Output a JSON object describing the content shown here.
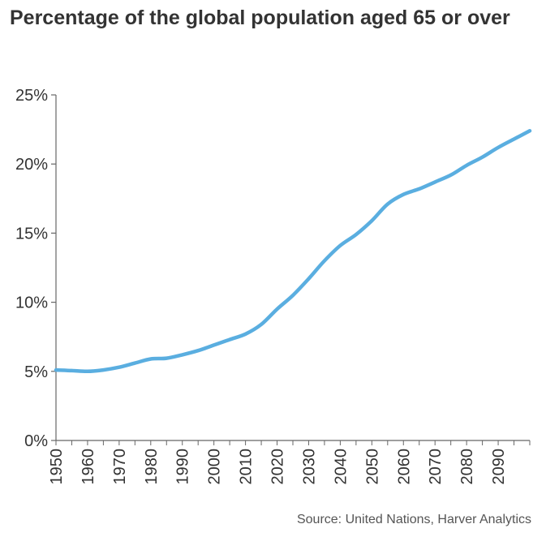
{
  "title": "Percentage of the global population aged 65 or over",
  "source": "Source: United Nations, Harver Analytics",
  "chart_data": {
    "type": "line",
    "title": "Percentage of the global population aged 65 or over",
    "xlabel": "",
    "ylabel": "",
    "xlim": [
      1950,
      2100
    ],
    "ylim": [
      0,
      25
    ],
    "y_ticks": [
      "0%",
      "5%",
      "10%",
      "15%",
      "20%",
      "25%"
    ],
    "y_tick_values": [
      0,
      5,
      10,
      15,
      20,
      25
    ],
    "x_ticks": [
      "1950",
      "1960",
      "1970",
      "1980",
      "1990",
      "2000",
      "2010",
      "2020",
      "2030",
      "2040",
      "2050",
      "2060",
      "2070",
      "2080",
      "2090"
    ],
    "x_tick_values": [
      1950,
      1960,
      1970,
      1980,
      1990,
      2000,
      2010,
      2020,
      2030,
      2040,
      2050,
      2060,
      2070,
      2080,
      2090
    ],
    "grid": false,
    "legend": "none",
    "line_color": "#5aaee0",
    "series": [
      {
        "x": [
          1950,
          1955,
          1960,
          1965,
          1970,
          1975,
          1980,
          1985,
          1990,
          1995,
          2000,
          2005,
          2010,
          2015,
          2020,
          2025,
          2030,
          2035,
          2040,
          2045,
          2050,
          2055,
          2060,
          2065,
          2070,
          2075,
          2080,
          2085,
          2090,
          2095,
          2100
        ],
        "values": [
          5.1,
          5.05,
          5.0,
          5.1,
          5.3,
          5.6,
          5.9,
          5.95,
          6.2,
          6.5,
          6.9,
          7.3,
          7.7,
          8.4,
          9.5,
          10.5,
          11.7,
          13.0,
          14.1,
          14.9,
          15.9,
          17.1,
          17.8,
          18.2,
          18.7,
          19.2,
          19.9,
          20.5,
          21.2,
          21.8,
          22.4
        ]
      }
    ]
  }
}
